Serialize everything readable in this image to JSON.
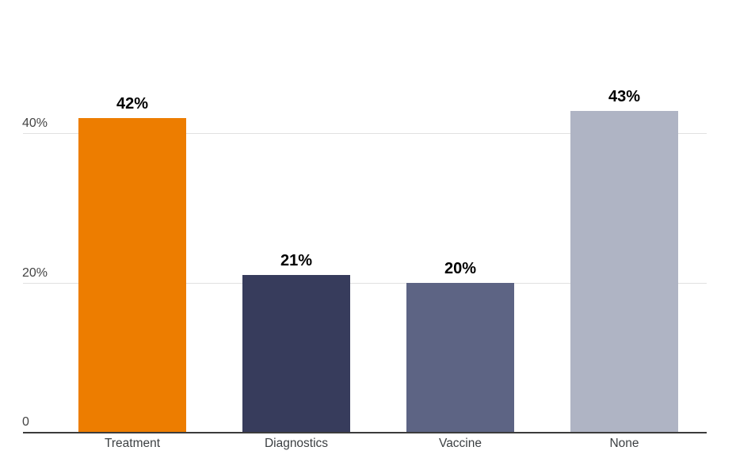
{
  "chart_data": {
    "type": "bar",
    "title": "",
    "xlabel": "",
    "ylabel": "",
    "categories": [
      "Treatment",
      "Diagnostics",
      "Vaccine",
      "None"
    ],
    "values": [
      42,
      21,
      20,
      43
    ],
    "value_labels": [
      "42%",
      "21%",
      "20%",
      "43%"
    ],
    "bar_colors": [
      "#ED7D00",
      "#373C5C",
      "#5D6484",
      "#AFB4C4"
    ],
    "ylim": [
      0,
      47
    ],
    "y_ticks": [
      {
        "value": 0,
        "label": "0"
      },
      {
        "value": 20,
        "label": "20%"
      },
      {
        "value": 40,
        "label": "40%"
      }
    ],
    "grid": "horizontal",
    "legend": "none"
  },
  "colors": {
    "background": "#FFFFFF",
    "gridline": "#E1E1E1",
    "axis_line": "#3C3C3C",
    "tick_text": "#444444",
    "category_text": "#3C4043",
    "value_text": "#000000"
  }
}
